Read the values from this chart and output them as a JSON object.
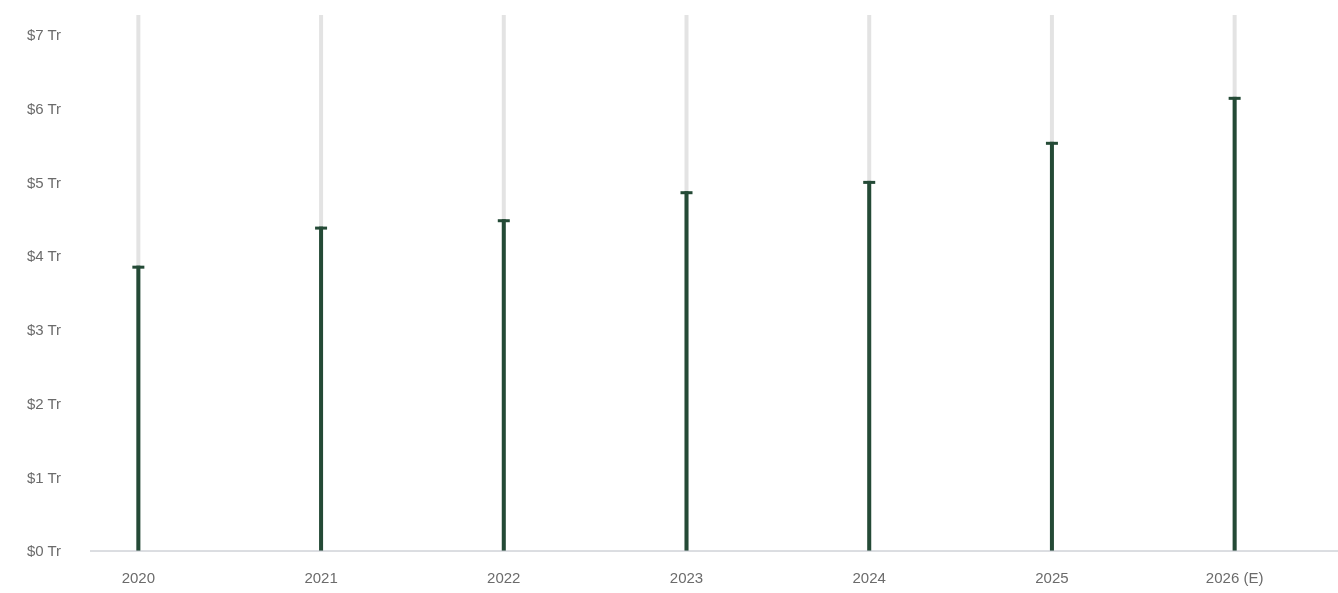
{
  "chart_data": {
    "type": "bar",
    "categories": [
      "2020",
      "2021",
      "2022",
      "2023",
      "2024",
      "2025",
      "2026 (E)"
    ],
    "values": [
      3.87,
      4.4,
      4.5,
      4.88,
      5.02,
      5.55,
      6.16
    ],
    "color": "#244a36",
    "ylim": [
      0,
      7.27
    ],
    "yticks": [
      {
        "value": 0,
        "label": "$0 Tr"
      },
      {
        "value": 1,
        "label": "$1 Tr"
      },
      {
        "value": 2,
        "label": "$2 Tr"
      },
      {
        "value": 3,
        "label": "$3 Tr"
      },
      {
        "value": 4,
        "label": "$4 Tr"
      },
      {
        "value": 5,
        "label": "$5 Tr"
      },
      {
        "value": 6,
        "label": "$6 Tr"
      },
      {
        "value": 7,
        "label": "$7 Tr"
      }
    ],
    "grid": "x"
  }
}
